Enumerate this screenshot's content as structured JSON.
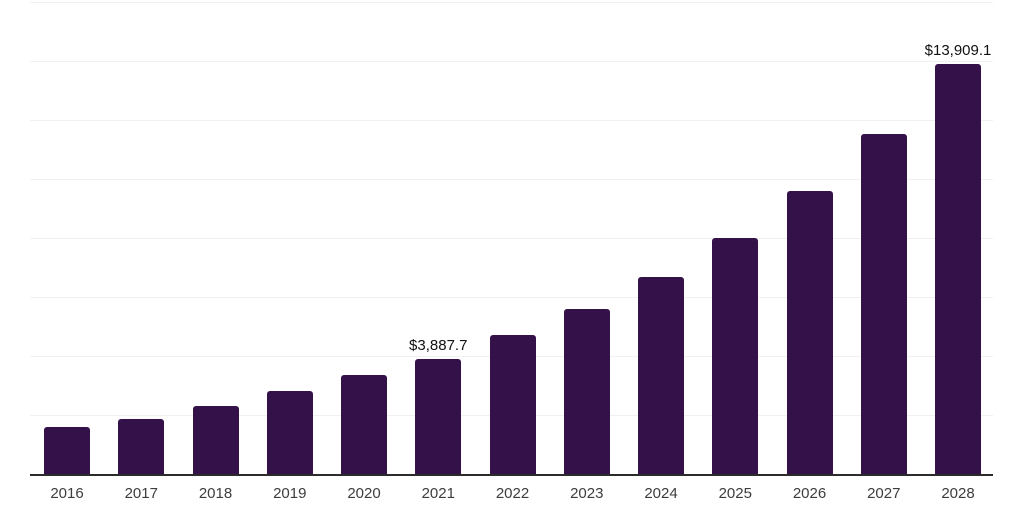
{
  "chart_data": {
    "type": "bar",
    "title": "",
    "xlabel": "",
    "ylabel": "",
    "categories": [
      "2016",
      "2017",
      "2018",
      "2019",
      "2020",
      "2021",
      "2022",
      "2023",
      "2024",
      "2025",
      "2026",
      "2027",
      "2028"
    ],
    "values": [
      1610,
      1880,
      2320,
      2820,
      3360,
      3887.7,
      4700,
      5580,
      6690,
      8000,
      9610,
      11520,
      13909.1
    ],
    "data_labels": {
      "2021": "$3,887.7",
      "2028": "$13,909.1"
    },
    "ylim": [
      0,
      16000
    ],
    "gridline_step": 2000,
    "grid": true,
    "legend": false,
    "y_axis_labels_visible": false,
    "colors": {
      "bar": "#341148",
      "axis": "#2b2b2b",
      "gridline": "#f0f0f0",
      "tick_label": "#3d3d3d",
      "data_label": "#111111"
    }
  }
}
